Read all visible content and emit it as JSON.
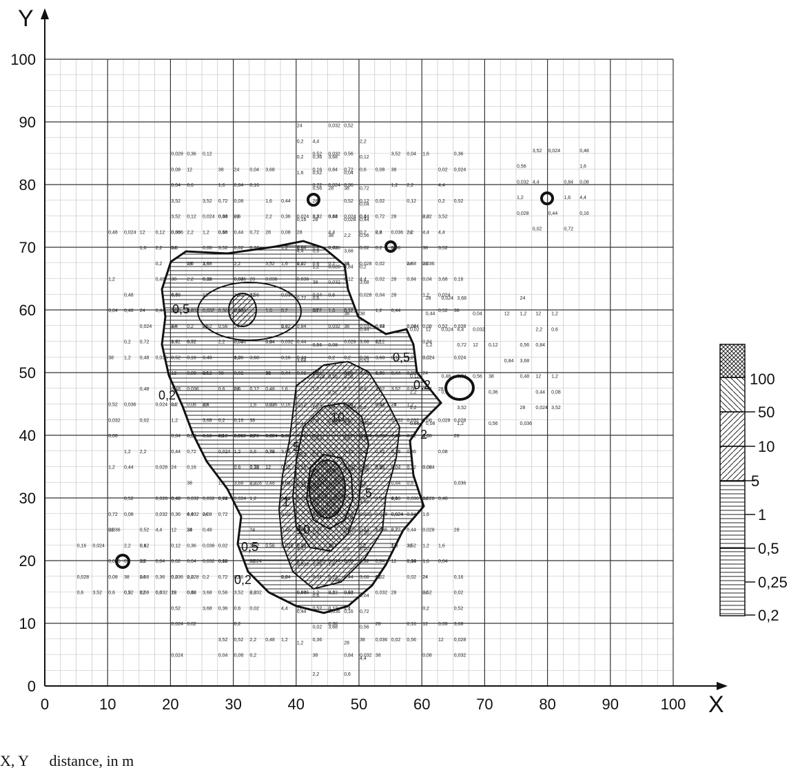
{
  "axes": {
    "x_label": "X",
    "y_label": "Y",
    "x_ticks": [
      "0",
      "10",
      "20",
      "30",
      "40",
      "50",
      "60",
      "70",
      "80",
      "90",
      "100"
    ],
    "y_ticks": [
      "0",
      "10",
      "20",
      "30",
      "40",
      "50",
      "60",
      "70",
      "80",
      "90",
      "100"
    ]
  },
  "legend": {
    "labels": [
      "100",
      "50",
      "10",
      "5",
      "1",
      "0,5",
      "0,25",
      "0,2"
    ]
  },
  "contour_labels": [
    "0,5",
    "0,2",
    "5",
    "10",
    "1",
    "5",
    "10",
    "0,5",
    "0,2",
    "2",
    "0,5",
    "0,2"
  ],
  "caption": {
    "symbol": "X, Y",
    "description": "distance, in m"
  },
  "grid_values": [
    "0,02",
    "0,028",
    "0,036",
    "0,024",
    "0,032",
    "0,04",
    "0,08",
    "0,12",
    "0,16",
    "0,2",
    "0,36",
    "0,44",
    "0,48",
    "0,52",
    "0,56",
    "0,6",
    "0,72",
    "0,84",
    "1,2",
    "1,6",
    "2,2",
    "3,52",
    "3,68",
    "4,4",
    "12",
    "24",
    "28",
    "38"
  ]
}
